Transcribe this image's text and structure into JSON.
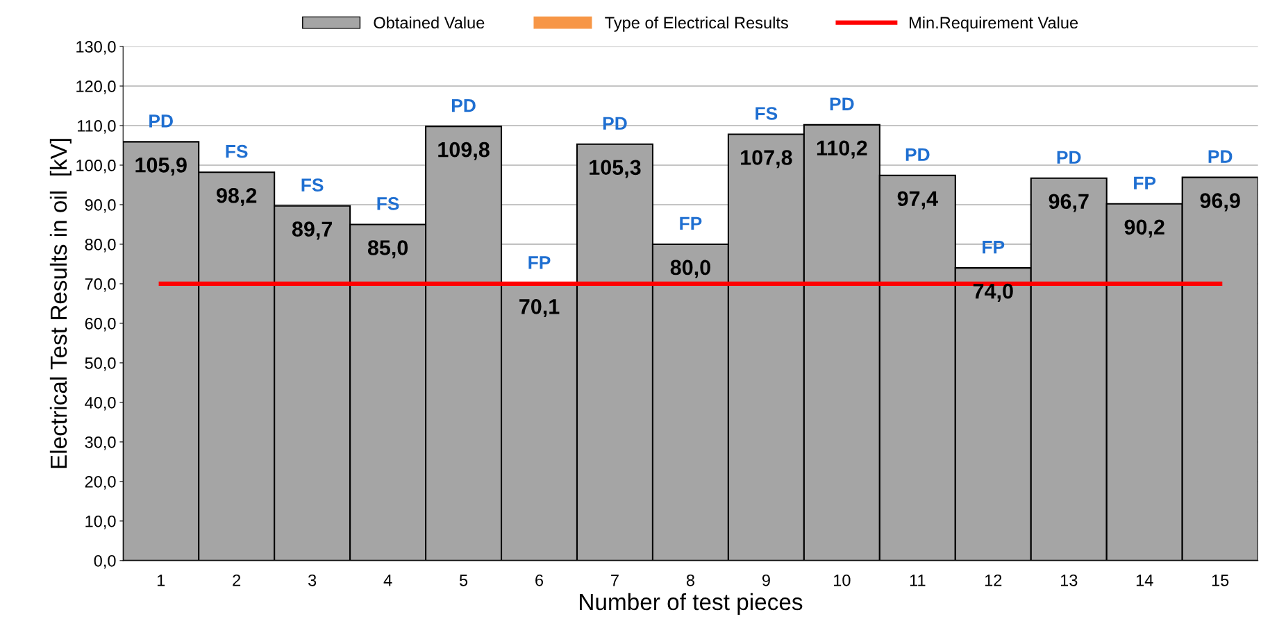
{
  "chart_data": {
    "type": "bar",
    "xlabel": "Number of test pieces",
    "ylabel": "Electrical Test Results in oil  [kV]",
    "categories": [
      "1",
      "2",
      "3",
      "4",
      "5",
      "6",
      "7",
      "8",
      "9",
      "10",
      "11",
      "12",
      "13",
      "14",
      "15"
    ],
    "series": [
      {
        "name": "Obtained Value",
        "color": "#a5a5a5",
        "values": [
          105.9,
          98.2,
          89.7,
          85.0,
          109.8,
          70.1,
          105.3,
          80.0,
          107.8,
          110.2,
          97.4,
          74.0,
          96.7,
          90.2,
          96.9
        ],
        "value_labels": [
          "105,9",
          "98,2",
          "89,7",
          "85,0",
          "109,8",
          "70,1",
          "105,3",
          "80,0",
          "107,8",
          "110,2",
          "97,4",
          "74,0",
          "96,7",
          "90,2",
          "96,9"
        ]
      },
      {
        "name": "Type of Electrical Results",
        "color": "#f79646",
        "values": [
          0,
          0,
          0,
          0,
          0,
          0,
          0,
          0,
          0,
          0,
          0,
          0,
          0,
          0,
          0
        ],
        "value_labels": [
          "PD",
          "FS",
          "FS",
          "FS",
          "PD",
          "FP",
          "PD",
          "FP",
          "FS",
          "PD",
          "PD",
          "FP",
          "PD",
          "FP",
          "PD"
        ]
      },
      {
        "name": "Min.Requirement Value",
        "type": "line",
        "color": "#ff0000",
        "values": [
          70,
          70,
          70,
          70,
          70,
          70,
          70,
          70,
          70,
          70,
          70,
          70,
          70,
          70,
          70
        ]
      }
    ],
    "stacked": true,
    "ylim": [
      0,
      130
    ],
    "yticks": [
      {
        "value": 0,
        "label": "0,0"
      },
      {
        "value": 10,
        "label": "10,0"
      },
      {
        "value": 20,
        "label": "20,0"
      },
      {
        "value": 30,
        "label": "30,0"
      },
      {
        "value": 40,
        "label": "40,0"
      },
      {
        "value": 50,
        "label": "50,0"
      },
      {
        "value": 60,
        "label": "60,0"
      },
      {
        "value": 70,
        "label": "70,0"
      },
      {
        "value": 80,
        "label": "80,0"
      },
      {
        "value": 90,
        "label": "90,0"
      },
      {
        "value": 100,
        "label": "100,0"
      },
      {
        "value": 110,
        "label": "110,0"
      },
      {
        "value": 120,
        "label": "120,0"
      },
      {
        "value": 130,
        "label": "130,0"
      }
    ],
    "grid": "y",
    "legend": "top",
    "marker": "none",
    "line_style": "solid"
  }
}
